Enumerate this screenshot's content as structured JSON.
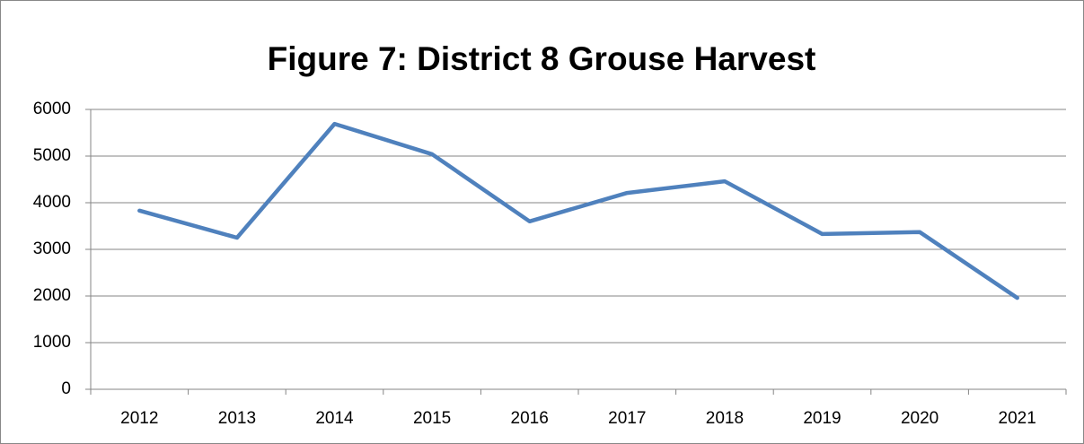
{
  "chart_data": {
    "type": "line",
    "title": "Figure 7: District 8 Grouse Harvest",
    "categories": [
      "2012",
      "2013",
      "2014",
      "2015",
      "2016",
      "2017",
      "2018",
      "2019",
      "2020",
      "2021"
    ],
    "values": [
      3830,
      3250,
      5690,
      5040,
      3600,
      4210,
      4460,
      3330,
      3370,
      1960
    ],
    "color": "#4f81bd",
    "ylim": [
      0,
      6000
    ],
    "yticks": [
      0,
      1000,
      2000,
      3000,
      4000,
      5000,
      6000
    ],
    "grid": true
  }
}
